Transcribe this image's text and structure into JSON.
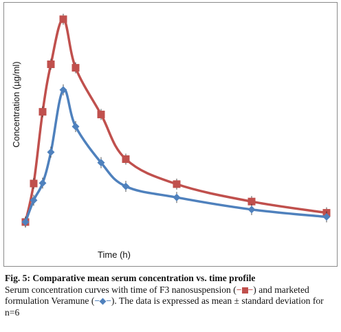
{
  "chart_data": {
    "type": "line",
    "xlabel": "Time (h)",
    "ylabel": "Concentration (µg/ml)",
    "axes_visible": false,
    "grid": false,
    "series": [
      {
        "color": "#c0504d",
        "marker": "square",
        "smooth": true,
        "points": [
          {
            "x": 0,
            "y": 0.0
          },
          {
            "x": 0.25,
            "y": 18.8
          },
          {
            "x": 0.5,
            "y": 53.8
          },
          {
            "x": 0.75,
            "y": 77.0
          },
          {
            "x": 1,
            "y": 99.0
          },
          {
            "x": 1.5,
            "y": 75.3
          },
          {
            "x": 2,
            "y": 52.5
          },
          {
            "x": 4,
            "y": 30.7
          },
          {
            "x": 6,
            "y": 18.5
          },
          {
            "x": 9,
            "y": 10.0
          },
          {
            "x": 12,
            "y": 4.5
          }
        ]
      },
      {
        "color": "#4f81bd",
        "marker": "diamond",
        "smooth": true,
        "points": [
          {
            "x": 0,
            "y": 0.0
          },
          {
            "x": 0.25,
            "y": 10.6
          },
          {
            "x": 0.5,
            "y": 19.0
          },
          {
            "x": 0.75,
            "y": 34.1
          },
          {
            "x": 1,
            "y": 64.5
          },
          {
            "x": 1.5,
            "y": 46.6
          },
          {
            "x": 2,
            "y": 29.0
          },
          {
            "x": 4,
            "y": 17.4
          },
          {
            "x": 6,
            "y": 12.0
          },
          {
            "x": 9,
            "y": 6.1
          },
          {
            "x": 12,
            "y": 2.5
          }
        ]
      }
    ]
  },
  "caption": {
    "fig_title": "Fig. 5: Comparative mean serum concentration vs. time profile",
    "line1": "Serum concentration curves with time of F3 nanosuspension (",
    "line2": ") and marketed formulation Veramune (",
    "line3": "). The data is expressed as mean ± standard deviation for n=6",
    "dash": "−"
  }
}
